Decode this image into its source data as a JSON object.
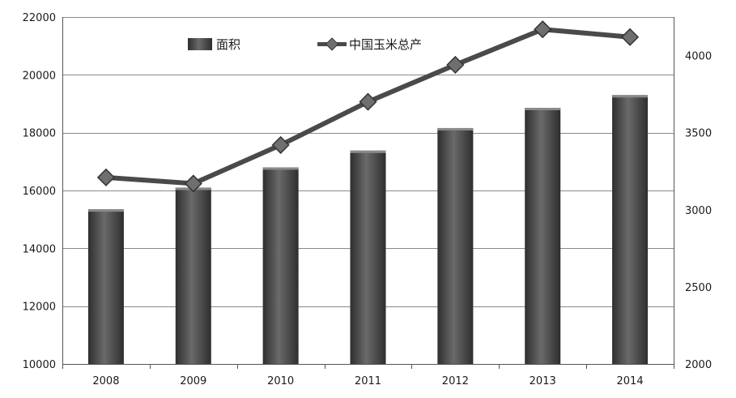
{
  "chart_data": {
    "type": "bar",
    "title": "",
    "categories": [
      "2008",
      "2009",
      "2010",
      "2011",
      "2012",
      "2013",
      "2014"
    ],
    "series": [
      {
        "name": "面积",
        "type": "bar",
        "axis": "left",
        "values": [
          15350,
          16100,
          16800,
          17380,
          18160,
          18860,
          19300
        ]
      },
      {
        "name": "中国玉米总产",
        "type": "line",
        "axis": "right",
        "values": [
          3210,
          3170,
          3420,
          3700,
          3940,
          4170,
          4120
        ]
      }
    ],
    "y_left": {
      "min": 10000,
      "max": 22000,
      "ticks": [
        "10000",
        "12000",
        "14000",
        "16000",
        "18000",
        "20000",
        "22000"
      ]
    },
    "y_right": {
      "min": 2000,
      "max": 4250,
      "ticks": [
        "2000",
        "2500",
        "3000",
        "3500",
        "4000"
      ]
    },
    "grid": true,
    "legend_position": "top-center"
  },
  "colors": {
    "bar_dark": "#2e2e2e",
    "bar_light": "#6a6a6a",
    "line": "#4a4a4a",
    "marker": "#6f6f6f",
    "grid": "#8a8a8a",
    "axis": "#555555"
  }
}
